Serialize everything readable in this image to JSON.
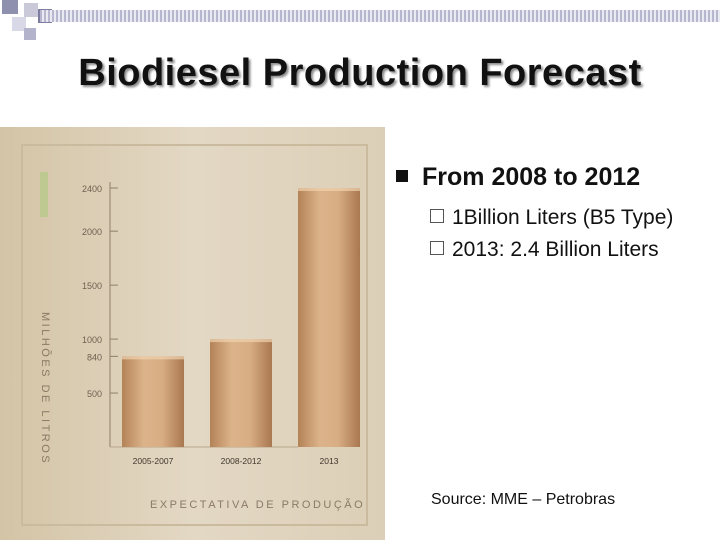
{
  "title": "Biodiesel Production Forecast",
  "bullets": {
    "heading": "From 2008 to 2012",
    "items": [
      "1Billion Liters (B5 Type)",
      "2013: 2.4 Billion Liters"
    ]
  },
  "source": "Source: MME – Petrobras",
  "chart_data": {
    "type": "bar",
    "categories": [
      "2005-2007",
      "2008-2012",
      "2013"
    ],
    "values": [
      840,
      1000,
      2400
    ],
    "ylabel": "MILHÕES DE LITROS",
    "xlabel": "EXPECTATIVA DE PRODUÇÃO",
    "yticks": [
      500,
      840,
      1000,
      1500,
      2000,
      2400
    ],
    "ylim": [
      0,
      2400
    ],
    "grid": false,
    "bar_color": "#c99a6e",
    "panel_color": "#ddd1ba"
  }
}
